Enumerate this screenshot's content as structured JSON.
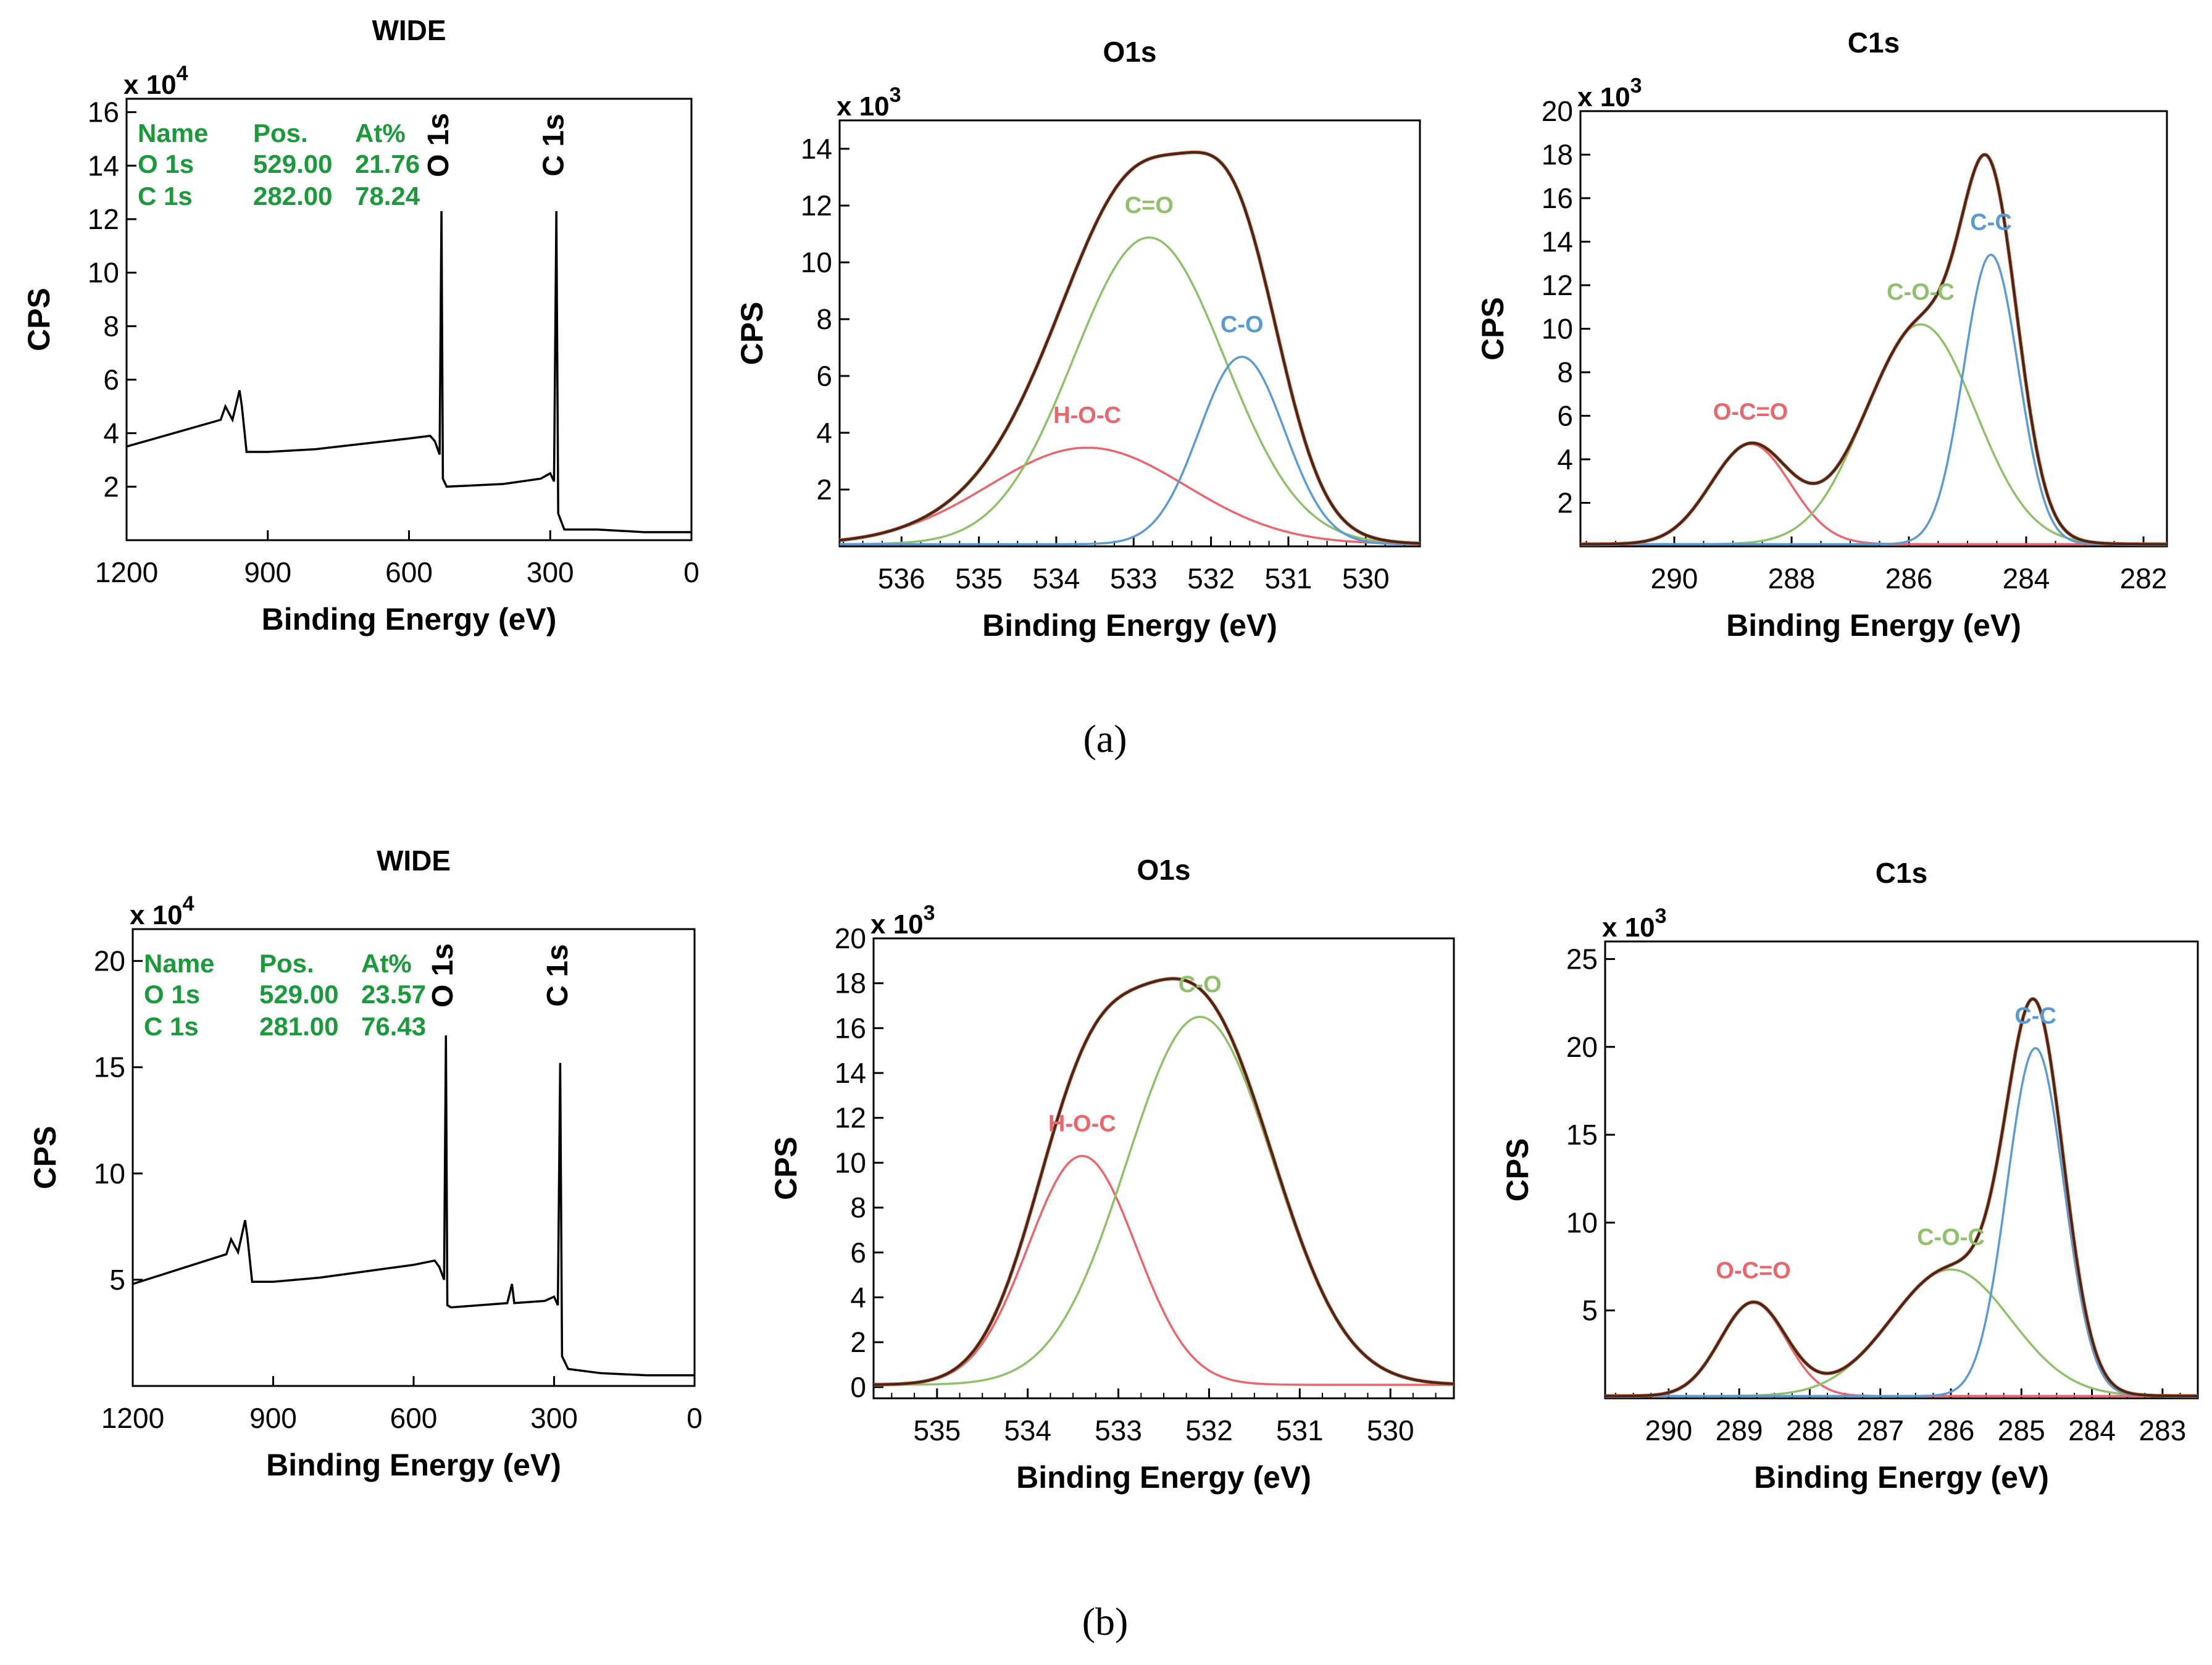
{
  "panel_labels": [
    "(a)",
    "(b)"
  ],
  "colors": {
    "axis": "#000000",
    "total": "#3a2a22",
    "envelope": "#e86a3a",
    "red": "#e9676c",
    "green": "#8fc06a",
    "blue": "#5b9bd5",
    "legend_text": "#1a9a3a"
  },
  "chart_data": [
    {
      "type": "line",
      "panel": "a",
      "title": "WIDE",
      "xlabel": "Binding Energy (eV)",
      "ylabel": "CPS",
      "y_multiplier": "x 10^4",
      "xlim": [
        1200,
        0
      ],
      "ylim": [
        0,
        16.5
      ],
      "x_ticks": [
        1200,
        900,
        600,
        300,
        0
      ],
      "y_ticks": [
        2,
        4,
        6,
        8,
        10,
        12,
        14,
        16
      ],
      "peak_labels": [
        {
          "text": "O 1s",
          "x": 530
        },
        {
          "text": "C 1s",
          "x": 285
        }
      ],
      "table": {
        "headers": [
          "Name",
          "Pos.",
          "At%"
        ],
        "rows": [
          [
            "O 1s",
            "529.00",
            "21.76"
          ],
          [
            "C 1s",
            "282.00",
            "78.24"
          ]
        ]
      },
      "series": [
        {
          "color": "black",
          "points": [
            [
              1200,
              3.5
            ],
            [
              1100,
              4.0
            ],
            [
              1000,
              4.5
            ],
            [
              990,
              5.0
            ],
            [
              975,
              4.5
            ],
            [
              960,
              5.6
            ],
            [
              955,
              5.0
            ],
            [
              945,
              3.3
            ],
            [
              900,
              3.3
            ],
            [
              800,
              3.4
            ],
            [
              700,
              3.6
            ],
            [
              600,
              3.8
            ],
            [
              555,
              3.9
            ],
            [
              545,
              3.7
            ],
            [
              535,
              3.2
            ],
            [
              531,
              12.3
            ],
            [
              528,
              2.3
            ],
            [
              520,
              2.0
            ],
            [
              400,
              2.1
            ],
            [
              320,
              2.3
            ],
            [
              300,
              2.5
            ],
            [
              292,
              2.2
            ],
            [
              287,
              12.3
            ],
            [
              283,
              1.0
            ],
            [
              270,
              0.4
            ],
            [
              200,
              0.4
            ],
            [
              100,
              0.3
            ],
            [
              0,
              0.3
            ]
          ]
        }
      ]
    },
    {
      "type": "line",
      "panel": "a",
      "title": "O1s",
      "xlabel": "Binding Energy (eV)",
      "ylabel": "CPS",
      "y_multiplier": "x 10^3",
      "xlim": [
        536.8,
        529.3
      ],
      "ylim": [
        0,
        15
      ],
      "x_ticks": [
        536,
        535,
        534,
        533,
        532,
        531,
        530
      ],
      "y_ticks": [
        2,
        4,
        6,
        8,
        10,
        12,
        14
      ],
      "peak_labels": [
        {
          "text": "C=O",
          "color": "green"
        },
        {
          "text": "C-O",
          "color": "blue"
        },
        {
          "text": "H-O-C",
          "color": "red"
        }
      ],
      "components": [
        {
          "label": "H-O-C",
          "color": "red",
          "center": 533.6,
          "height": 3.4,
          "fwhm": 3.0
        },
        {
          "label": "C=O",
          "color": "green",
          "center": 532.8,
          "height": 10.8,
          "fwhm": 2.3
        },
        {
          "label": "C-O",
          "color": "blue",
          "center": 531.6,
          "height": 6.6,
          "fwhm": 1.3
        }
      ],
      "total": {
        "color": "total",
        "peak": 13.8
      }
    },
    {
      "type": "line",
      "panel": "a",
      "title": "C1s",
      "xlabel": "Binding Energy (eV)",
      "ylabel": "CPS",
      "y_multiplier": "x 10^3",
      "xlim": [
        291.6,
        281.6
      ],
      "ylim": [
        0,
        20
      ],
      "x_ticks": [
        290,
        288,
        286,
        284,
        282
      ],
      "y_ticks": [
        2,
        4,
        6,
        8,
        10,
        12,
        14,
        16,
        18,
        20
      ],
      "peak_labels": [
        {
          "text": "O-C=O",
          "color": "red"
        },
        {
          "text": "C-O-C",
          "color": "green"
        },
        {
          "text": "C-C",
          "color": "blue"
        }
      ],
      "components": [
        {
          "label": "O-C=O",
          "color": "red",
          "center": 288.7,
          "height": 4.6,
          "fwhm": 1.6
        },
        {
          "label": "C-O-C",
          "color": "green",
          "center": 285.8,
          "height": 10.1,
          "fwhm": 2.2
        },
        {
          "label": "C-C",
          "color": "blue",
          "center": 284.6,
          "height": 13.3,
          "fwhm": 1.1
        }
      ],
      "total": {
        "color": "total",
        "peak": 17.9
      }
    },
    {
      "type": "line",
      "panel": "b",
      "title": "WIDE",
      "xlabel": "Binding Energy (eV)",
      "ylabel": "CPS",
      "y_multiplier": "x 10^4",
      "xlim": [
        1200,
        0
      ],
      "ylim": [
        0,
        21.5
      ],
      "x_ticks": [
        1200,
        900,
        600,
        300,
        0
      ],
      "y_ticks": [
        5,
        10,
        15,
        20
      ],
      "peak_labels": [
        {
          "text": "O 1s",
          "x": 530
        },
        {
          "text": "C 1s",
          "x": 285
        }
      ],
      "table": {
        "headers": [
          "Name",
          "Pos.",
          "At%"
        ],
        "rows": [
          [
            "O 1s",
            "529.00",
            "23.57"
          ],
          [
            "C 1s",
            "281.00",
            "76.43"
          ]
        ]
      },
      "series": [
        {
          "color": "black",
          "points": [
            [
              1200,
              4.8
            ],
            [
              1100,
              5.5
            ],
            [
              1000,
              6.2
            ],
            [
              990,
              6.9
            ],
            [
              975,
              6.3
            ],
            [
              960,
              7.8
            ],
            [
              955,
              7.0
            ],
            [
              945,
              4.9
            ],
            [
              900,
              4.9
            ],
            [
              800,
              5.1
            ],
            [
              700,
              5.4
            ],
            [
              600,
              5.7
            ],
            [
              555,
              5.9
            ],
            [
              545,
              5.6
            ],
            [
              535,
              5.0
            ],
            [
              531,
              16.5
            ],
            [
              528,
              3.8
            ],
            [
              520,
              3.7
            ],
            [
              400,
              3.9
            ],
            [
              390,
              4.8
            ],
            [
              385,
              3.9
            ],
            [
              320,
              4.0
            ],
            [
              300,
              4.2
            ],
            [
              292,
              3.8
            ],
            [
              287,
              15.2
            ],
            [
              283,
              1.4
            ],
            [
              270,
              0.8
            ],
            [
              200,
              0.6
            ],
            [
              100,
              0.5
            ],
            [
              0,
              0.5
            ]
          ]
        }
      ]
    },
    {
      "type": "line",
      "panel": "b",
      "title": "O1s",
      "xlabel": "Binding Energy (eV)",
      "ylabel": "CPS",
      "y_multiplier": "x 10^3",
      "xlim": [
        535.7,
        529.3
      ],
      "ylim": [
        -0.5,
        20
      ],
      "x_ticks": [
        535,
        534,
        533,
        532,
        531,
        530
      ],
      "y_ticks": [
        0,
        2,
        4,
        6,
        8,
        10,
        12,
        14,
        16,
        18,
        20
      ],
      "peak_labels": [
        {
          "text": "C-O",
          "color": "green"
        },
        {
          "text": "H-O-C",
          "color": "red"
        }
      ],
      "components": [
        {
          "label": "H-O-C",
          "color": "red",
          "center": 533.4,
          "height": 10.2,
          "fwhm": 1.4
        },
        {
          "label": "C-O",
          "color": "green",
          "center": 532.1,
          "height": 16.4,
          "fwhm": 1.9
        }
      ],
      "total": {
        "color": "total",
        "peak": 18.1
      }
    },
    {
      "type": "line",
      "panel": "b",
      "title": "C1s",
      "xlabel": "Binding Energy (eV)",
      "ylabel": "CPS",
      "y_multiplier": "x 10^3",
      "xlim": [
        290.9,
        282.5
      ],
      "ylim": [
        0,
        26
      ],
      "x_ticks": [
        290,
        289,
        288,
        287,
        286,
        285,
        284,
        283
      ],
      "y_ticks": [
        5,
        10,
        15,
        20,
        25
      ],
      "peak_labels": [
        {
          "text": "O-C=O",
          "color": "red"
        },
        {
          "text": "C-O-C",
          "color": "green"
        },
        {
          "text": "C-C",
          "color": "blue"
        }
      ],
      "components": [
        {
          "label": "O-C=O",
          "color": "red",
          "center": 288.8,
          "height": 5.3,
          "fwhm": 1.1
        },
        {
          "label": "C-O-C",
          "color": "green",
          "center": 286.0,
          "height": 7.2,
          "fwhm": 2.0
        },
        {
          "label": "C-C",
          "color": "blue",
          "center": 284.8,
          "height": 19.8,
          "fwhm": 0.95
        }
      ],
      "total": {
        "color": "total",
        "peak": 22.6
      }
    }
  ]
}
